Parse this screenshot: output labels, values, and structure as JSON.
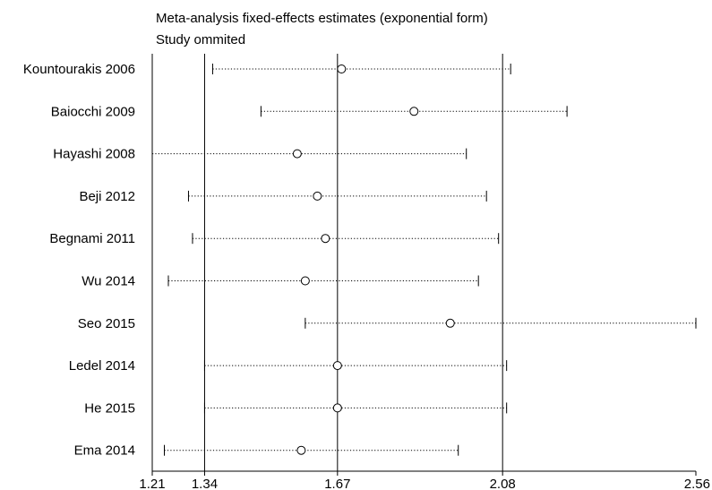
{
  "chart_data": {
    "type": "forest",
    "title": "Meta-analysis fixed-effects estimates (exponential form)",
    "subtitle": "Study ommited",
    "x_ticks": [
      1.21,
      1.34,
      1.67,
      2.08,
      2.56
    ],
    "xlim": [
      1.21,
      2.56
    ],
    "reference_lines": [
      1.34,
      1.67,
      2.08
    ],
    "studies": [
      {
        "label": "Kountourakis 2006",
        "estimate": 1.68,
        "lower": 1.36,
        "upper": 2.1
      },
      {
        "label": "Baiocchi 2009",
        "estimate": 1.86,
        "lower": 1.48,
        "upper": 2.24
      },
      {
        "label": "Hayashi 2008",
        "estimate": 1.57,
        "lower": 1.21,
        "upper": 1.99
      },
      {
        "label": "Beji 2012",
        "estimate": 1.62,
        "lower": 1.3,
        "upper": 2.04
      },
      {
        "label": "Begnami 2011",
        "estimate": 1.64,
        "lower": 1.31,
        "upper": 2.07
      },
      {
        "label": "Wu 2014",
        "estimate": 1.59,
        "lower": 1.25,
        "upper": 2.02
      },
      {
        "label": "Seo 2015",
        "estimate": 1.95,
        "lower": 1.59,
        "upper": 2.56
      },
      {
        "label": "Ledel 2014",
        "estimate": 1.67,
        "lower": 1.34,
        "upper": 2.09
      },
      {
        "label": "He 2015",
        "estimate": 1.67,
        "lower": 1.34,
        "upper": 2.09
      },
      {
        "label": "Ema 2014",
        "estimate": 1.58,
        "lower": 1.24,
        "upper": 1.97
      }
    ]
  }
}
